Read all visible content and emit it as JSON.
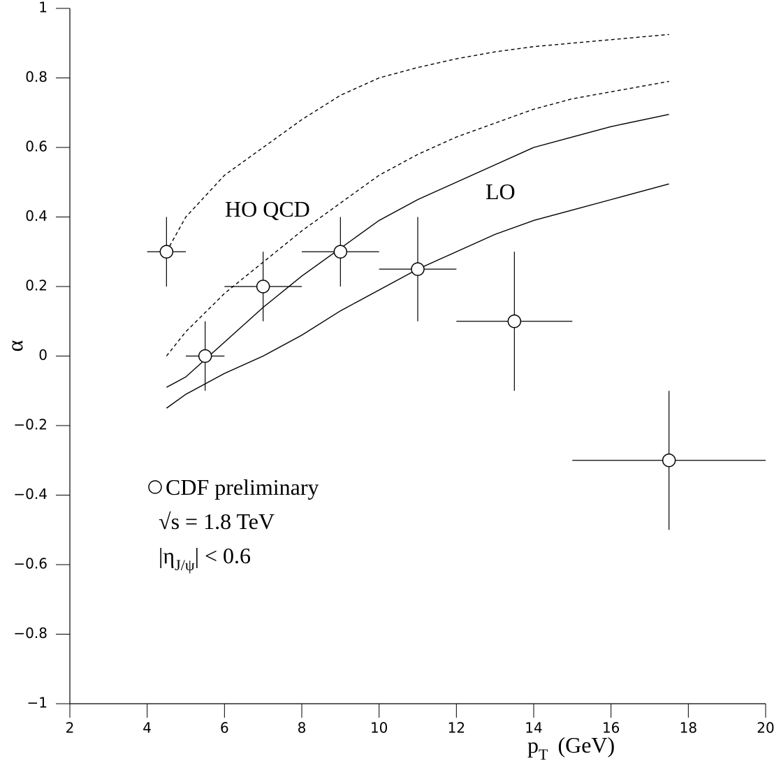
{
  "chart_data": {
    "type": "errorbar",
    "xlim": [
      2,
      20
    ],
    "ylim": [
      -1,
      1
    ],
    "xticks": [
      2,
      4,
      6,
      8,
      10,
      12,
      14,
      16,
      18,
      20
    ],
    "yticks": [
      {
        "value": -1,
        "label": "−1"
      },
      {
        "value": -0.8,
        "label": "−0.8"
      },
      {
        "value": -0.6,
        "label": "−0.6"
      },
      {
        "value": -0.4,
        "label": "−0.4"
      },
      {
        "value": -0.2,
        "label": "−0.2"
      },
      0,
      0.2,
      0.4,
      0.6,
      0.8,
      1
    ],
    "xlabel": {
      "main": "p",
      "sub": "T",
      "unit": "(GeV)"
    },
    "ylabel": "α",
    "color": "#000000",
    "series": [
      {
        "name": "CDF preliminary",
        "x": [
          4.5,
          5.5,
          7,
          9,
          11,
          13.5,
          17.5
        ],
        "xerr": [
          0.5,
          0.5,
          1,
          1,
          1,
          1.5,
          2.5
        ],
        "y": [
          0.3,
          0,
          0.2,
          0.3,
          0.25,
          0.1,
          -0.3
        ],
        "yerr": [
          0.1,
          0.1,
          0.1,
          0.1,
          0.15,
          0.2,
          0.2
        ]
      }
    ],
    "curves": [
      {
        "style": "dashed",
        "x": [
          4.5,
          5,
          6,
          7,
          8,
          9,
          10,
          11,
          12,
          13,
          14,
          15,
          16,
          17.5
        ],
        "y": [
          0.3,
          0.4,
          0.52,
          0.6,
          0.68,
          0.75,
          0.8,
          0.83,
          0.855,
          0.875,
          0.89,
          0.9,
          0.91,
          0.925
        ]
      },
      {
        "style": "dashed",
        "x": [
          4.5,
          5,
          6,
          7,
          8,
          9,
          10,
          11,
          12,
          13,
          14,
          15,
          16,
          17.5
        ],
        "y": [
          0.0,
          0.07,
          0.18,
          0.27,
          0.36,
          0.44,
          0.52,
          0.58,
          0.63,
          0.67,
          0.71,
          0.74,
          0.76,
          0.79
        ]
      },
      {
        "style": "solid",
        "x": [
          4.5,
          5,
          5.5,
          6,
          7,
          8,
          9,
          10,
          11,
          12,
          13,
          14,
          15,
          16,
          17.5
        ],
        "y": [
          -0.09,
          -0.06,
          -0.01,
          0.04,
          0.14,
          0.23,
          0.31,
          0.39,
          0.45,
          0.5,
          0.55,
          0.6,
          0.63,
          0.66,
          0.695
        ]
      },
      {
        "style": "solid",
        "x": [
          4.5,
          5,
          6,
          7,
          8,
          9,
          10,
          11,
          12,
          13,
          14,
          15,
          16,
          17.5
        ],
        "y": [
          -0.15,
          -0.11,
          -0.05,
          0.0,
          0.06,
          0.13,
          0.19,
          0.25,
          0.3,
          0.35,
          0.39,
          0.42,
          0.45,
          0.495
        ]
      }
    ],
    "annotations": [
      "HO QCD",
      "LO"
    ],
    "legend_notes": {
      "energy": "√s = 1.8 TeV",
      "eta": {
        "pre": "|η",
        "sub": "J/ψ",
        "post": "| < 0.6"
      }
    }
  }
}
